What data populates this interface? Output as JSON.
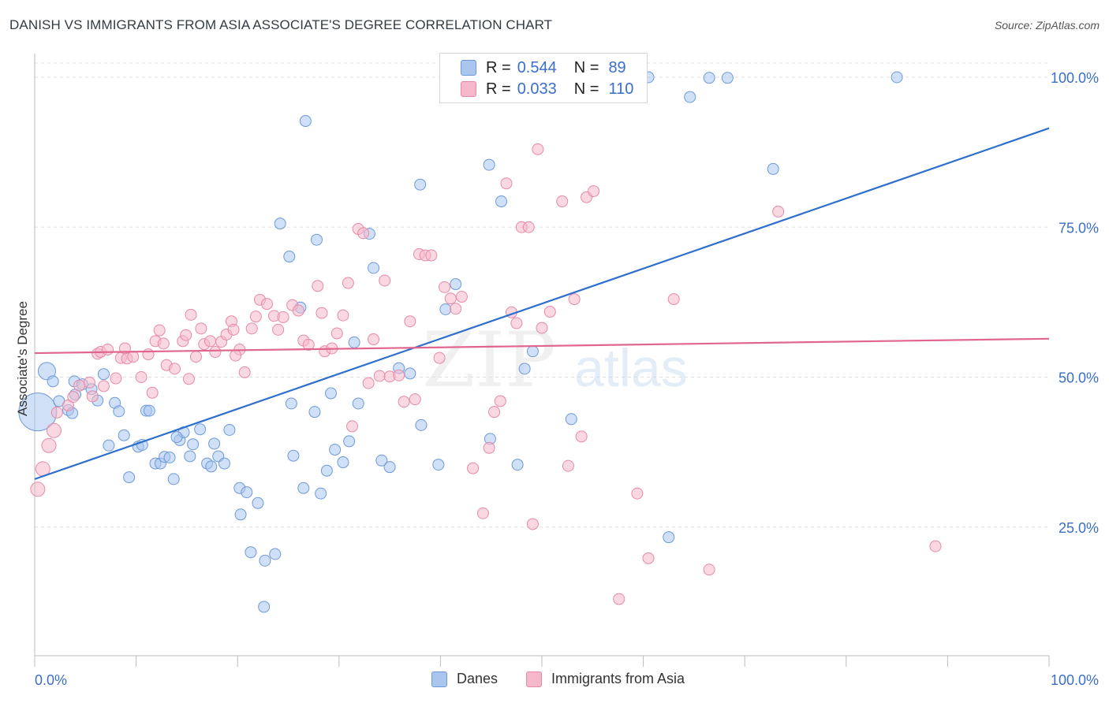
{
  "title": "DANISH VS IMMIGRANTS FROM ASIA ASSOCIATE'S DEGREE CORRELATION CHART",
  "source": "Source: ZipAtlas.com",
  "watermark": {
    "zip": "ZIP",
    "atlas": "atlas"
  },
  "legend": {
    "rows": [
      {
        "r_label": "R =",
        "r_value": "0.544",
        "n_label": "N =",
        "n_value": "89"
      },
      {
        "r_label": "R =",
        "r_value": "0.033",
        "n_label": "N =",
        "n_value": "110"
      }
    ]
  },
  "bottom_legend": {
    "danes": "Danes",
    "asia": "Immigrants from Asia"
  },
  "colors": {
    "danes_fill": "#a9c6ee",
    "danes_stroke": "#6e9ad8",
    "danes_line": "#2d6fcc",
    "asia_fill": "#f5b8cb",
    "asia_stroke": "#e68aa8",
    "asia_line": "#e0668e",
    "axis_label": "#3a6fc9",
    "grid": "#e0e0e0"
  },
  "chart_data": {
    "type": "scatter",
    "title": "DANISH VS IMMIGRANTS FROM ASIA ASSOCIATE'S DEGREE CORRELATION CHART",
    "xlabel": "",
    "ylabel": "Associate's Degree",
    "xlim": [
      0,
      100
    ],
    "ylim": [
      0,
      100
    ],
    "x_tick_labels": [
      "0.0%",
      "100.0%"
    ],
    "y_tick_labels": [
      "25.0%",
      "50.0%",
      "75.0%",
      "100.0%"
    ],
    "y_ticks": [
      25,
      50,
      75,
      100
    ],
    "grid": true,
    "legend_position": "top-center",
    "series": [
      {
        "name": "Danes",
        "R": 0.544,
        "N": 89,
        "trend": {
          "x": [
            0,
            100
          ],
          "y": [
            33.0,
            91.5
          ]
        },
        "points": [
          [
            0.3,
            44.2,
            24
          ],
          [
            1.2,
            51.0,
            11
          ],
          [
            1.8,
            49.3,
            7
          ],
          [
            2.4,
            46.0,
            7
          ],
          [
            3.3,
            44.5,
            7
          ],
          [
            3.7,
            44.0,
            7
          ],
          [
            4.0,
            47.1,
            7
          ],
          [
            3.9,
            49.3,
            7
          ],
          [
            4.7,
            48.8,
            7
          ],
          [
            5.6,
            48.0,
            7
          ],
          [
            6.2,
            46.1,
            7
          ],
          [
            6.8,
            50.5,
            7
          ],
          [
            7.3,
            38.6,
            7
          ],
          [
            7.9,
            45.7,
            7
          ],
          [
            8.3,
            44.3,
            7
          ],
          [
            8.8,
            40.3,
            7
          ],
          [
            9.3,
            33.3,
            7
          ],
          [
            10.2,
            38.4,
            7
          ],
          [
            10.6,
            38.7,
            7
          ],
          [
            11.0,
            44.4,
            7
          ],
          [
            11.3,
            44.4,
            7
          ],
          [
            11.9,
            35.6,
            7
          ],
          [
            12.4,
            35.6,
            7
          ],
          [
            12.8,
            36.7,
            7
          ],
          [
            13.3,
            36.6,
            7
          ],
          [
            13.7,
            33.0,
            7
          ],
          [
            14.3,
            39.5,
            7
          ],
          [
            14.7,
            40.8,
            7
          ],
          [
            15.3,
            36.8,
            7
          ],
          [
            15.6,
            38.8,
            7
          ],
          [
            16.3,
            41.3,
            7
          ],
          [
            17.0,
            35.6,
            7
          ],
          [
            17.4,
            35.1,
            7
          ],
          [
            17.7,
            38.9,
            7
          ],
          [
            18.1,
            36.8,
            7
          ],
          [
            18.7,
            35.6,
            7
          ],
          [
            19.2,
            41.2,
            7
          ],
          [
            20.2,
            31.5,
            7
          ],
          [
            20.9,
            30.8,
            7
          ],
          [
            20.3,
            27.1,
            7
          ],
          [
            21.3,
            20.8,
            7
          ],
          [
            22.0,
            29.0,
            7
          ],
          [
            22.7,
            19.4,
            7
          ],
          [
            22.6,
            11.7,
            7
          ],
          [
            23.7,
            20.5,
            7
          ],
          [
            24.2,
            75.6,
            7
          ],
          [
            25.1,
            70.1,
            7
          ],
          [
            25.3,
            45.6,
            7
          ],
          [
            25.5,
            36.9,
            7
          ],
          [
            26.2,
            61.6,
            7
          ],
          [
            26.5,
            31.5,
            7
          ],
          [
            26.7,
            92.7,
            7
          ],
          [
            27.6,
            44.2,
            7
          ],
          [
            27.8,
            72.9,
            7
          ],
          [
            28.2,
            30.6,
            7
          ],
          [
            28.8,
            34.4,
            7
          ],
          [
            29.2,
            47.3,
            7
          ],
          [
            29.6,
            37.9,
            7
          ],
          [
            30.4,
            35.8,
            7
          ],
          [
            31.0,
            39.3,
            7
          ],
          [
            31.5,
            55.8,
            7
          ],
          [
            31.9,
            45.6,
            7
          ],
          [
            33.0,
            73.9,
            7
          ],
          [
            33.4,
            68.2,
            7
          ],
          [
            34.2,
            36.1,
            7
          ],
          [
            35.0,
            35.0,
            7
          ],
          [
            35.9,
            51.5,
            7
          ],
          [
            37.0,
            50.6,
            7
          ],
          [
            38.0,
            82.1,
            7
          ],
          [
            38.1,
            42.0,
            7
          ],
          [
            39.8,
            35.4,
            7
          ],
          [
            40.5,
            61.3,
            7
          ],
          [
            41.5,
            65.5,
            7
          ],
          [
            44.8,
            85.4,
            7
          ],
          [
            44.9,
            39.7,
            7
          ],
          [
            46.0,
            79.3,
            7
          ],
          [
            47.6,
            35.4,
            7
          ],
          [
            48.3,
            51.4,
            7
          ],
          [
            49.1,
            54.3,
            7
          ],
          [
            52.9,
            43.0,
            7
          ],
          [
            58.1,
            99.7,
            7
          ],
          [
            60.5,
            100.0,
            7
          ],
          [
            62.5,
            23.3,
            7
          ],
          [
            64.6,
            96.7,
            7
          ],
          [
            66.5,
            99.9,
            7
          ],
          [
            68.3,
            99.9,
            7
          ],
          [
            72.8,
            84.7,
            7
          ],
          [
            85.0,
            100.0,
            7
          ],
          [
            14.0,
            40.0,
            7
          ]
        ]
      },
      {
        "name": "Immigrants from Asia",
        "R": 0.033,
        "N": 110,
        "trend": {
          "x": [
            0,
            100
          ],
          "y": [
            54.0,
            56.4
          ]
        },
        "points": [
          [
            0.3,
            31.3,
            9
          ],
          [
            0.8,
            34.7,
            9
          ],
          [
            1.4,
            38.6,
            9
          ],
          [
            1.9,
            41.1,
            9
          ],
          [
            2.2,
            44.1,
            7
          ],
          [
            3.3,
            45.3,
            7
          ],
          [
            3.8,
            46.7,
            7
          ],
          [
            4.4,
            48.6,
            7
          ],
          [
            5.4,
            49.1,
            7
          ],
          [
            5.7,
            46.8,
            7
          ],
          [
            6.2,
            53.9,
            7
          ],
          [
            6.5,
            54.2,
            7
          ],
          [
            7.2,
            54.6,
            7
          ],
          [
            8.0,
            49.8,
            7
          ],
          [
            8.5,
            53.2,
            7
          ],
          [
            9.1,
            53.1,
            7
          ],
          [
            9.7,
            53.4,
            7
          ],
          [
            10.5,
            50.0,
            7
          ],
          [
            11.2,
            53.8,
            7
          ],
          [
            11.6,
            47.4,
            7
          ],
          [
            11.9,
            56.0,
            7
          ],
          [
            12.3,
            57.8,
            7
          ],
          [
            12.7,
            55.6,
            7
          ],
          [
            13.0,
            52.0,
            7
          ],
          [
            13.8,
            51.4,
            7
          ],
          [
            14.6,
            56.0,
            7
          ],
          [
            14.9,
            57.0,
            7
          ],
          [
            15.4,
            60.4,
            7
          ],
          [
            15.9,
            53.4,
            7
          ],
          [
            16.4,
            58.1,
            7
          ],
          [
            16.7,
            55.5,
            7
          ],
          [
            17.3,
            56.0,
            7
          ],
          [
            17.8,
            54.2,
            7
          ],
          [
            18.4,
            55.9,
            7
          ],
          [
            18.9,
            57.1,
            7
          ],
          [
            19.4,
            59.3,
            7
          ],
          [
            19.6,
            57.9,
            7
          ],
          [
            20.2,
            54.6,
            7
          ],
          [
            20.7,
            50.8,
            7
          ],
          [
            21.4,
            58.1,
            7
          ],
          [
            21.8,
            60.1,
            7
          ],
          [
            22.2,
            62.9,
            7
          ],
          [
            22.9,
            62.2,
            7
          ],
          [
            23.6,
            60.2,
            7
          ],
          [
            24.0,
            57.9,
            7
          ],
          [
            24.5,
            60.0,
            7
          ],
          [
            25.4,
            62.0,
            7
          ],
          [
            26.0,
            61.1,
            7
          ],
          [
            26.5,
            56.1,
            7
          ],
          [
            27.0,
            55.4,
            7
          ],
          [
            27.9,
            65.2,
            7
          ],
          [
            28.3,
            60.7,
            7
          ],
          [
            28.6,
            54.3,
            7
          ],
          [
            29.3,
            54.8,
            7
          ],
          [
            29.8,
            57.3,
            7
          ],
          [
            30.4,
            60.3,
            7
          ],
          [
            30.9,
            65.7,
            7
          ],
          [
            31.3,
            41.8,
            7
          ],
          [
            31.9,
            74.7,
            7
          ],
          [
            32.4,
            74.0,
            7
          ],
          [
            32.9,
            49.0,
            7
          ],
          [
            33.4,
            56.3,
            7
          ],
          [
            34.0,
            50.2,
            7
          ],
          [
            34.5,
            66.1,
            7
          ],
          [
            35.0,
            50.1,
            7
          ],
          [
            35.9,
            50.3,
            7
          ],
          [
            36.4,
            45.9,
            7
          ],
          [
            37.0,
            59.3,
            7
          ],
          [
            37.5,
            46.3,
            7
          ],
          [
            37.9,
            70.5,
            7
          ],
          [
            38.5,
            70.3,
            7
          ],
          [
            39.1,
            70.3,
            7
          ],
          [
            39.9,
            53.2,
            7
          ],
          [
            40.4,
            65.0,
            7
          ],
          [
            41.0,
            63.1,
            7
          ],
          [
            41.5,
            61.4,
            7
          ],
          [
            42.1,
            63.4,
            7
          ],
          [
            43.2,
            34.8,
            7
          ],
          [
            44.2,
            27.3,
            7
          ],
          [
            44.8,
            38.2,
            7
          ],
          [
            45.3,
            44.2,
            7
          ],
          [
            45.9,
            46.0,
            7
          ],
          [
            46.5,
            82.3,
            7
          ],
          [
            47.0,
            60.8,
            7
          ],
          [
            47.5,
            59.0,
            7
          ],
          [
            48.0,
            75.0,
            7
          ],
          [
            48.7,
            75.0,
            7
          ],
          [
            49.1,
            25.5,
            7
          ],
          [
            49.6,
            88.0,
            7
          ],
          [
            50.0,
            58.2,
            7
          ],
          [
            50.8,
            60.9,
            7
          ],
          [
            52.0,
            79.3,
            7
          ],
          [
            52.6,
            35.2,
            7
          ],
          [
            53.2,
            63.0,
            7
          ],
          [
            53.9,
            40.1,
            7
          ],
          [
            54.4,
            80.0,
            7
          ],
          [
            55.1,
            81.0,
            7
          ],
          [
            57.6,
            13.0,
            7
          ],
          [
            59.4,
            30.6,
            7
          ],
          [
            60.5,
            19.8,
            7
          ],
          [
            63.0,
            63.0,
            7
          ],
          [
            66.5,
            17.9,
            7
          ],
          [
            73.3,
            77.6,
            7
          ],
          [
            88.8,
            21.8,
            7
          ],
          [
            6.8,
            48.5,
            7
          ],
          [
            8.9,
            54.8,
            7
          ],
          [
            15.2,
            49.7,
            7
          ],
          [
            19.8,
            53.6,
            7
          ]
        ]
      }
    ]
  }
}
